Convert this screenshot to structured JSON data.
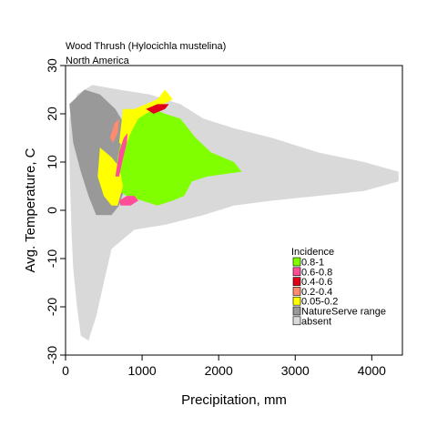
{
  "chart_data": {
    "type": "heatmap",
    "title": "Wood Thrush  (Hylocichla mustelina)",
    "subtitle": "North America",
    "xlabel": "Precipitation, mm",
    "ylabel": "Avg. Temperature, C",
    "xlim": [
      0,
      4400
    ],
    "ylim": [
      -30,
      30
    ],
    "x_ticks": [
      0,
      1000,
      2000,
      3000,
      4000
    ],
    "y_ticks": [
      -30,
      -20,
      -10,
      0,
      10,
      20,
      30
    ],
    "grid": false,
    "legend": {
      "position": "right-center",
      "title": "Incidence",
      "entries": [
        {
          "label": "0.8-1",
          "color": "#80ff00"
        },
        {
          "label": "0.6-0.8",
          "color": "#ff4d9a"
        },
        {
          "label": "0.4-0.6",
          "color": "#e0001a"
        },
        {
          "label": "0.2-0.4",
          "color": "#ff8a70"
        },
        {
          "label": "0.05-0.2",
          "color": "#ffff00"
        },
        {
          "label": "NatureServe range",
          "color": "#999999"
        },
        {
          "label": "absent",
          "color": "#d9d9d9"
        }
      ]
    },
    "regions": [
      {
        "class": "absent",
        "polygon": [
          [
            50,
            19
          ],
          [
            150,
            24
          ],
          [
            350,
            26
          ],
          [
            700,
            25
          ],
          [
            1100,
            24
          ],
          [
            1500,
            22
          ],
          [
            1800,
            19
          ],
          [
            2200,
            17
          ],
          [
            2700,
            15
          ],
          [
            3300,
            12
          ],
          [
            3900,
            10
          ],
          [
            4350,
            8
          ],
          [
            4350,
            6
          ],
          [
            3900,
            4
          ],
          [
            3300,
            3
          ],
          [
            2700,
            2
          ],
          [
            2200,
            1
          ],
          [
            1800,
            -1
          ],
          [
            1300,
            -3
          ],
          [
            900,
            -4
          ],
          [
            600,
            -8
          ],
          [
            500,
            -15
          ],
          [
            400,
            -22
          ],
          [
            300,
            -27
          ],
          [
            200,
            -26
          ],
          [
            150,
            -20
          ],
          [
            100,
            -12
          ],
          [
            80,
            -5
          ],
          [
            60,
            5
          ],
          [
            50,
            12
          ]
        ]
      },
      {
        "class": "NatureServe range",
        "polygon": [
          [
            50,
            22
          ],
          [
            250,
            25
          ],
          [
            450,
            24
          ],
          [
            650,
            21
          ],
          [
            800,
            17
          ],
          [
            850,
            12
          ],
          [
            800,
            6
          ],
          [
            700,
            1
          ],
          [
            600,
            -1
          ],
          [
            400,
            -1
          ],
          [
            300,
            3
          ],
          [
            200,
            8
          ],
          [
            100,
            14
          ]
        ]
      },
      {
        "class": "0.8-1",
        "polygon": [
          [
            750,
            16
          ],
          [
            900,
            19
          ],
          [
            1050,
            20
          ],
          [
            1150,
            21
          ],
          [
            1300,
            20
          ],
          [
            1500,
            19
          ],
          [
            1700,
            15
          ],
          [
            1900,
            12
          ],
          [
            2200,
            10
          ],
          [
            2300,
            8
          ],
          [
            1850,
            7
          ],
          [
            1650,
            6
          ],
          [
            1550,
            3
          ],
          [
            1400,
            2
          ],
          [
            1200,
            1
          ],
          [
            1000,
            2
          ],
          [
            800,
            3
          ],
          [
            700,
            4
          ],
          [
            650,
            7
          ],
          [
            680,
            11
          ]
        ]
      },
      {
        "class": "0.05-0.2",
        "polygon": [
          [
            450,
            13
          ],
          [
            600,
            11
          ],
          [
            700,
            9
          ],
          [
            750,
            5
          ],
          [
            680,
            1
          ],
          [
            600,
            1
          ],
          [
            500,
            3
          ],
          [
            420,
            7
          ]
        ]
      },
      {
        "class": "0.05-0.2",
        "polygon": [
          [
            750,
            21
          ],
          [
            900,
            21
          ],
          [
            1050,
            22
          ],
          [
            1200,
            23
          ],
          [
            1300,
            25
          ],
          [
            1400,
            23
          ],
          [
            1150,
            21
          ],
          [
            950,
            19
          ],
          [
            850,
            16
          ],
          [
            780,
            13
          ],
          [
            700,
            14
          ]
        ]
      },
      {
        "class": "0.6-0.8",
        "polygon": [
          [
            650,
            7
          ],
          [
            700,
            12
          ],
          [
            760,
            15
          ],
          [
            810,
            16
          ],
          [
            800,
            14
          ],
          [
            740,
            10
          ],
          [
            700,
            7
          ]
        ]
      },
      {
        "class": "0.6-0.8",
        "polygon": [
          [
            700,
            2
          ],
          [
            800,
            3
          ],
          [
            900,
            3
          ],
          [
            950,
            2
          ],
          [
            850,
            1
          ],
          [
            720,
            1
          ]
        ]
      },
      {
        "class": "0.2-0.4",
        "polygon": [
          [
            580,
            15
          ],
          [
            640,
            18
          ],
          [
            700,
            19
          ],
          [
            680,
            16
          ],
          [
            620,
            14
          ]
        ]
      },
      {
        "class": "0.4-0.6",
        "polygon": [
          [
            1050,
            21
          ],
          [
            1200,
            22
          ],
          [
            1350,
            22
          ],
          [
            1300,
            21
          ],
          [
            1150,
            20
          ]
        ]
      }
    ]
  }
}
